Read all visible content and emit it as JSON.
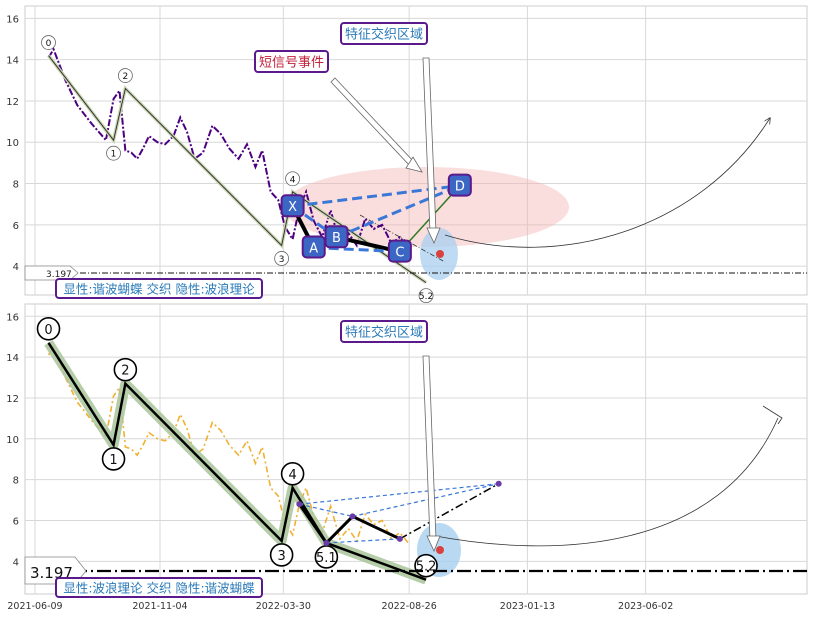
{
  "chart_data": [
    {
      "type": "line",
      "panel": "top",
      "ylim": [
        2.6,
        16.6
      ],
      "yticks": [
        4,
        6,
        8,
        10,
        12,
        14,
        16
      ],
      "grid": true,
      "price_series": {
        "color": "#4b0082",
        "x": [
          "2021-06-25",
          "2021-07-01",
          "2021-07-15",
          "2021-07-29",
          "2021-08-15",
          "2021-09-01",
          "2021-09-10",
          "2021-09-17",
          "2021-09-24",
          "2021-10-01",
          "2021-10-08",
          "2021-10-15",
          "2021-10-22",
          "2021-11-01",
          "2021-11-10",
          "2021-11-20",
          "2021-11-28",
          "2021-12-06",
          "2021-12-15",
          "2021-12-25",
          "2022-01-05",
          "2022-01-15",
          "2022-01-25",
          "2022-02-05",
          "2022-02-15",
          "2022-02-25",
          "2022-03-05",
          "2022-03-15",
          "2022-03-24",
          "2022-04-01",
          "2022-04-10",
          "2022-04-18",
          "2022-04-26",
          "2022-05-05",
          "2022-05-15",
          "2022-05-25",
          "2022-06-05",
          "2022-06-15",
          "2022-06-25",
          "2022-07-05",
          "2022-07-15",
          "2022-07-25",
          "2022-08-05",
          "2022-08-15",
          "2022-08-25"
        ],
        "y": [
          14.1,
          14.5,
          13.0,
          11.8,
          10.9,
          10.1,
          12.1,
          12.5,
          9.6,
          9.5,
          9.2,
          9.7,
          10.3,
          10.0,
          9.9,
          10.3,
          11.2,
          10.5,
          9.2,
          9.5,
          10.8,
          10.4,
          9.7,
          9.2,
          9.9,
          8.8,
          9.6,
          7.6,
          7.2,
          5.9,
          5.3,
          6.8,
          7.6,
          6.2,
          5.4,
          6.7,
          5.1,
          5.6,
          5.0,
          6.3,
          5.8,
          6.0,
          5.1,
          5.4,
          4.9
        ]
      },
      "wave_path": {
        "points": [
          [
            "2021-06-25",
            14.2
          ],
          [
            "2021-09-10",
            10.1
          ],
          [
            "2021-09-24",
            12.6
          ],
          [
            "2022-03-28",
            5.0
          ],
          [
            "2022-04-10",
            7.6
          ],
          [
            "2022-09-15",
            3.2
          ]
        ],
        "labels": [
          "0",
          "1",
          "2",
          "3",
          "4",
          "5.2"
        ]
      },
      "harmonic_pattern": {
        "points": [
          [
            "2022-04-10",
            6.9
          ],
          [
            "2022-05-05",
            4.9
          ],
          [
            "2022-06-01",
            5.4
          ],
          [
            "2022-08-15",
            4.7
          ],
          [
            "2022-10-25",
            7.9
          ]
        ],
        "labels": [
          "X",
          "A",
          "B",
          "C",
          "D"
        ]
      },
      "annotations": {
        "short_signal": "短信号事件",
        "intersection": "特征交织区域",
        "explicit_implicit": "显性:谐波蝴蝶 交织 隐性:波浪理论",
        "baseline_value": "3.197"
      },
      "baseline": 3.197
    },
    {
      "type": "line",
      "panel": "bottom",
      "ylim": [
        2.4,
        16.6
      ],
      "yticks": [
        4,
        6,
        8,
        10,
        12,
        14,
        16
      ],
      "xticks": [
        "2021-06-09",
        "2021-11-04",
        "2022-03-30",
        "2022-08-26",
        "2023-01-13",
        "2023-06-02"
      ],
      "grid": true,
      "price_series": {
        "color": "#f0b030",
        "x": [
          "2021-06-25",
          "2021-07-01",
          "2021-07-15",
          "2021-07-29",
          "2021-08-15",
          "2021-09-01",
          "2021-09-10",
          "2021-09-17",
          "2021-09-24",
          "2021-10-01",
          "2021-10-08",
          "2021-10-15",
          "2021-10-22",
          "2021-11-01",
          "2021-11-10",
          "2021-11-20",
          "2021-11-28",
          "2021-12-06",
          "2021-12-15",
          "2021-12-25",
          "2022-01-05",
          "2022-01-15",
          "2022-01-25",
          "2022-02-05",
          "2022-02-15",
          "2022-02-25",
          "2022-03-05",
          "2022-03-15",
          "2022-03-24",
          "2022-04-01",
          "2022-04-10",
          "2022-04-18",
          "2022-04-26",
          "2022-05-05",
          "2022-05-15",
          "2022-05-25",
          "2022-06-05",
          "2022-06-15",
          "2022-06-25",
          "2022-07-05",
          "2022-07-15",
          "2022-07-25",
          "2022-08-05",
          "2022-08-15",
          "2022-08-25"
        ],
        "y": [
          14.1,
          14.5,
          13.0,
          11.8,
          10.9,
          10.1,
          12.1,
          12.5,
          9.6,
          9.5,
          9.2,
          9.7,
          10.3,
          10.0,
          9.9,
          10.3,
          11.2,
          10.5,
          9.2,
          9.5,
          10.8,
          10.4,
          9.7,
          9.2,
          9.9,
          8.8,
          9.6,
          7.6,
          7.2,
          5.9,
          5.3,
          6.8,
          7.6,
          6.2,
          5.4,
          6.7,
          5.1,
          5.6,
          5.0,
          6.3,
          5.8,
          6.0,
          5.1,
          5.4,
          4.9
        ]
      },
      "wave_path": {
        "points": [
          [
            "2021-06-25",
            14.7
          ],
          [
            "2021-09-10",
            9.7
          ],
          [
            "2021-09-24",
            12.7
          ],
          [
            "2022-03-28",
            5.0
          ],
          [
            "2022-04-10",
            7.6
          ],
          [
            "2022-05-20",
            4.9
          ],
          [
            "2022-09-15",
            3.1
          ]
        ],
        "labels": [
          "0",
          "1",
          "2",
          "3",
          "4",
          "5.1",
          "5.2"
        ]
      },
      "harmonic_pattern": {
        "points": [
          [
            "2022-04-18",
            6.8
          ],
          [
            "2022-05-20",
            4.9
          ],
          [
            "2022-06-20",
            6.2
          ],
          [
            "2022-08-15",
            5.1
          ],
          [
            "2022-12-10",
            7.8
          ]
        ],
        "labels": []
      },
      "annotations": {
        "intersection": "特征交织区域",
        "explicit_implicit": "显性:波浪理论 交织 隐性:谐波蝴蝶",
        "baseline_value": "3.197"
      },
      "baseline": 3.197
    }
  ]
}
